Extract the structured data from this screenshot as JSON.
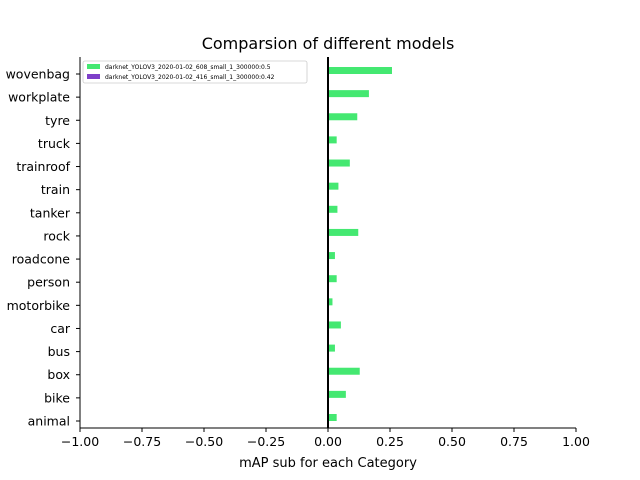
{
  "chart_data": {
    "type": "bar",
    "orientation": "horizontal",
    "title": "Comparsion of different models",
    "xlabel": "mAP sub for each Category",
    "ylabel": "",
    "xlim": [
      -1.0,
      1.0
    ],
    "xticks": [
      "−1.00",
      "−0.75",
      "−0.50",
      "−0.25",
      "0.00",
      "0.25",
      "0.50",
      "0.75",
      "1.00"
    ],
    "xtick_values": [
      -1.0,
      -0.75,
      -0.5,
      -0.25,
      0.0,
      0.25,
      0.5,
      0.75,
      1.0
    ],
    "grid": false,
    "legend_position": "top-left",
    "categories": [
      "animal",
      "bike",
      "box",
      "bus",
      "car",
      "motorbike",
      "person",
      "roadcone",
      "rock",
      "tanker",
      "train",
      "trainroof",
      "truck",
      "tyre",
      "workplate",
      "wovenbag"
    ],
    "series": [
      {
        "name": "darknet_YOLOV3_2020-01-02_608_small_1_300000:0.5",
        "color": "#44e871",
        "values": [
          0.035,
          0.072,
          0.128,
          0.028,
          0.052,
          0.018,
          0.035,
          0.028,
          0.122,
          0.038,
          0.042,
          0.088,
          0.035,
          0.118,
          0.165,
          0.258
        ]
      },
      {
        "name": "darknet_YOLOV3_2020-01-02_416_small_1_300000:0.42",
        "color": "#7e3fc9",
        "values": [
          0,
          0,
          0,
          0,
          0,
          0,
          0,
          0,
          0,
          0,
          0,
          0,
          0,
          0,
          0,
          0
        ]
      }
    ]
  }
}
